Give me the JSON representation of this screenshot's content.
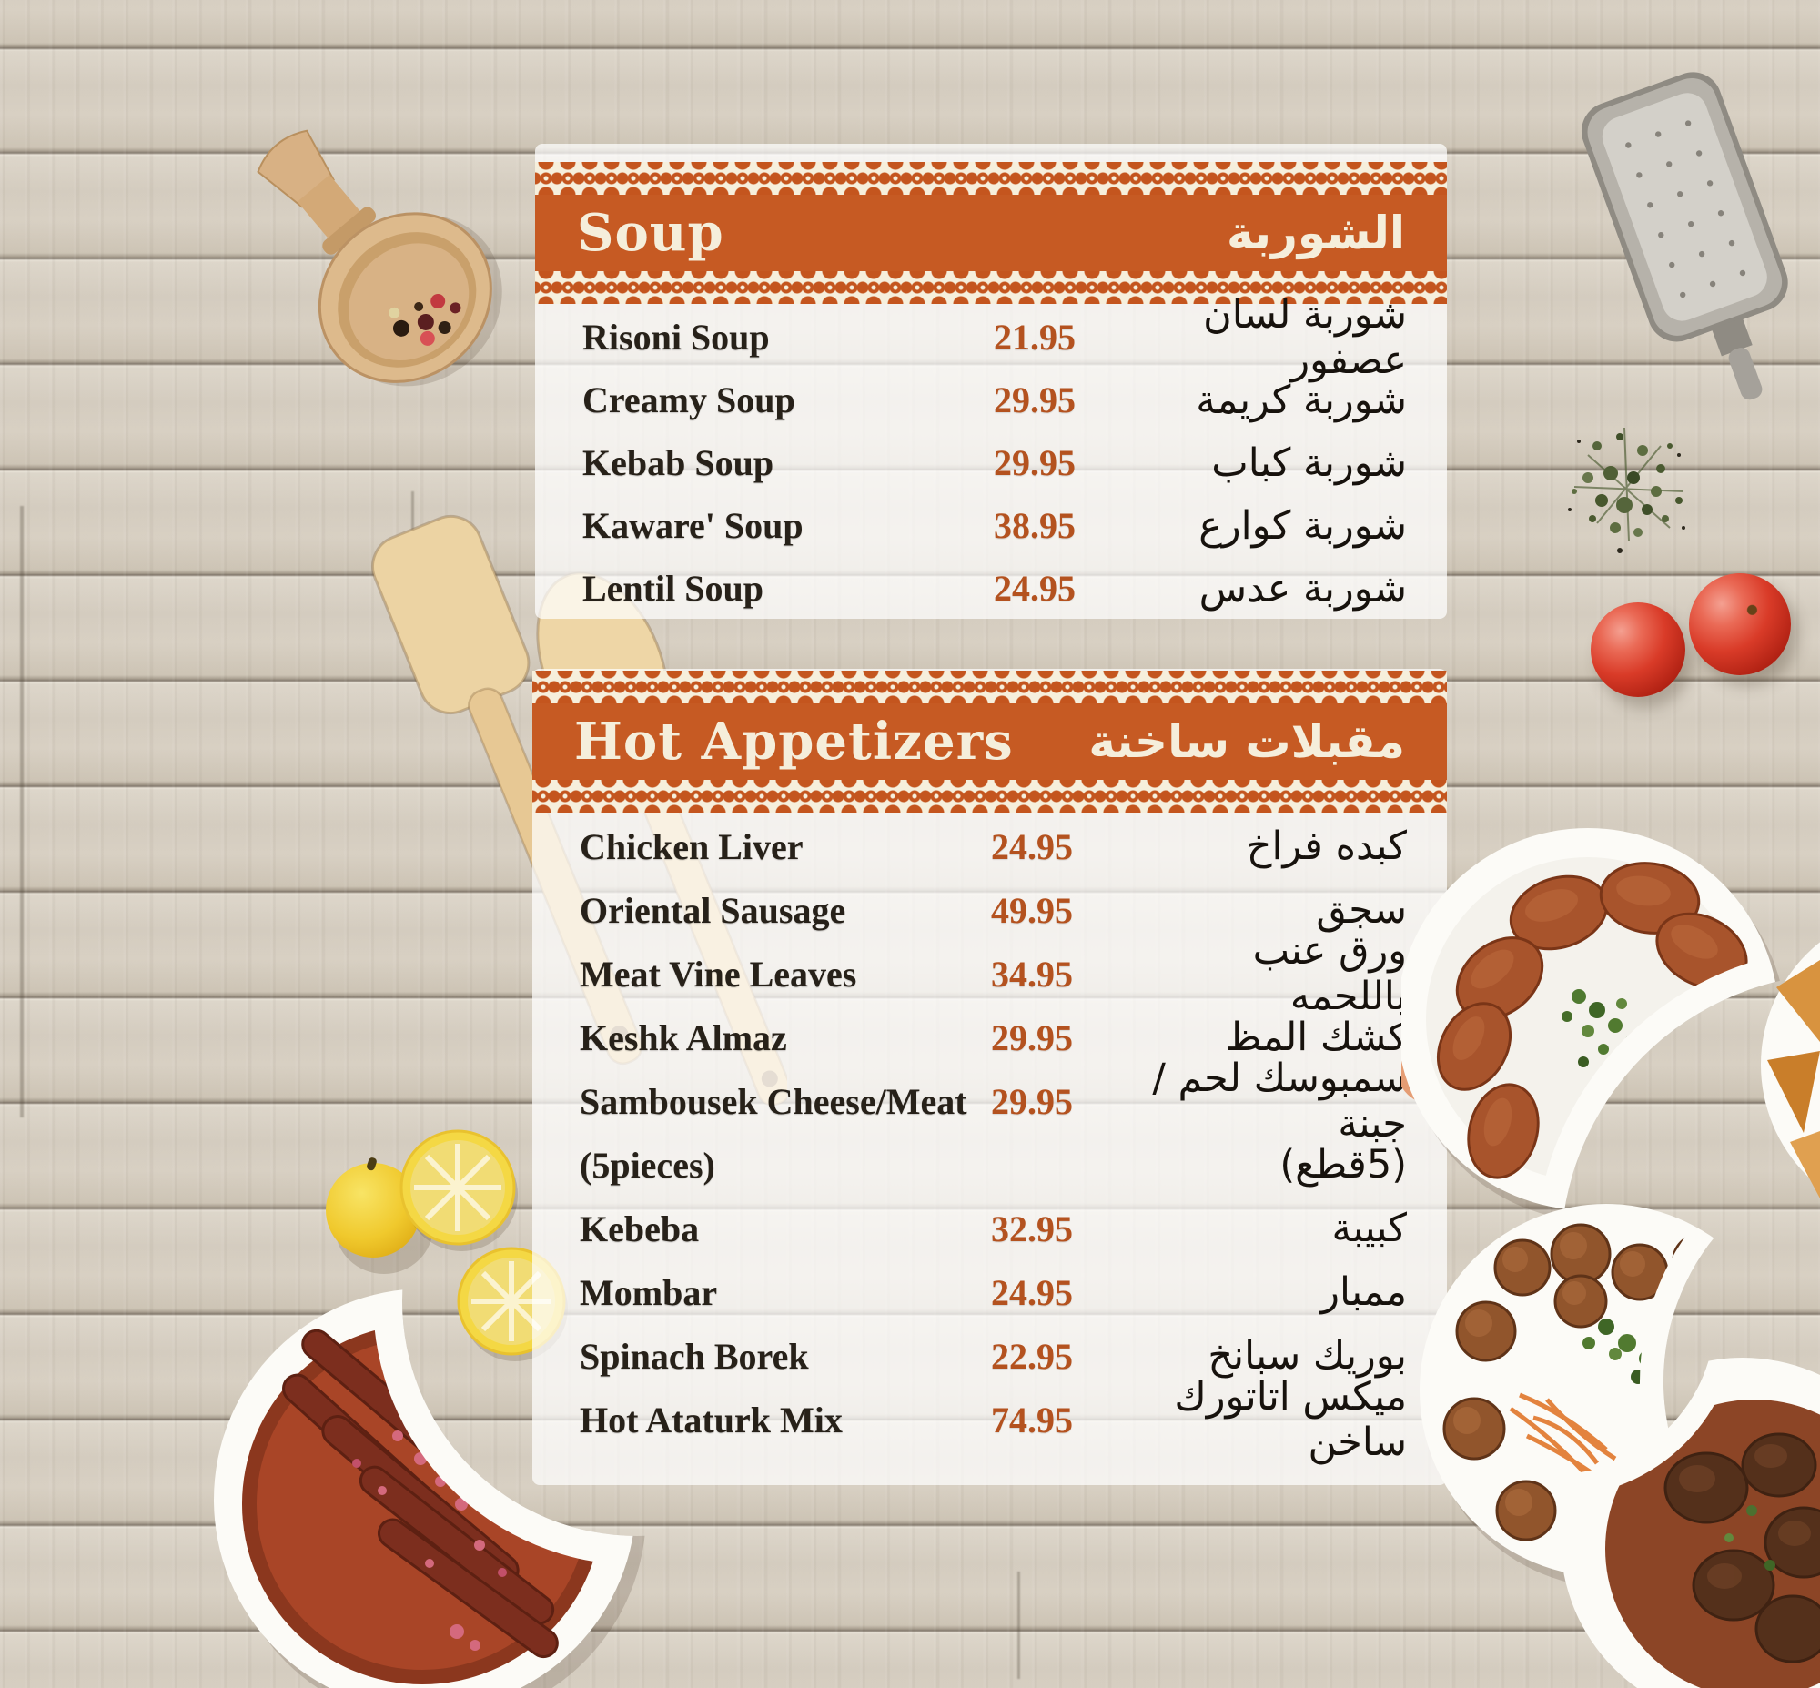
{
  "menu": {
    "sections": [
      {
        "id": "soup",
        "title_en": "Soup",
        "title_ar": "الشوربة",
        "items": [
          {
            "en": "Risoni Soup",
            "price": "21.95",
            "ar": "شوربة لسان عصفور"
          },
          {
            "en": "Creamy Soup",
            "price": "29.95",
            "ar": "شوربة كريمة"
          },
          {
            "en": "Kebab Soup",
            "price": "29.95",
            "ar": "شوربة كباب"
          },
          {
            "en": "Kaware' Soup",
            "price": "38.95",
            "ar": "شوربة كوارع"
          },
          {
            "en": "Lentil Soup",
            "price": "24.95",
            "ar": "شوربة عدس"
          }
        ]
      },
      {
        "id": "hot-appetizers",
        "title_en": "Hot Appetizers",
        "title_ar": "مقبلات ساخنة",
        "items": [
          {
            "en": "Chicken Liver",
            "price": "24.95",
            "ar": "كبده فراخ"
          },
          {
            "en": "Oriental Sausage",
            "price": "49.95",
            "ar": "سجق"
          },
          {
            "en": "Meat Vine Leaves",
            "price": "34.95",
            "ar": "ورق عنب باللحمه"
          },
          {
            "en": "Keshk Almaz",
            "price": "29.95",
            "ar": "كشك المظ"
          },
          {
            "en": "Sambousek Cheese/Meat",
            "en2": "(5pieces)",
            "price": "29.95",
            "ar": "سمبوسك لحم /جبنة",
            "ar2": "(5قطع)"
          },
          {
            "en": "Kebeba",
            "price": "32.95",
            "ar": "كبيبة"
          },
          {
            "en": "Mombar",
            "price": "24.95",
            "ar": "ممبار"
          },
          {
            "en": "Spinach Borek",
            "price": "22.95",
            "ar": "بوريك سبانخ"
          },
          {
            "en": "Hot Ataturk Mix",
            "price": "74.95",
            "ar": "ميكس اتاتورك ساخن"
          }
        ]
      }
    ]
  },
  "colors": {
    "banner_orange": "#c65a23",
    "banner_text": "#f5eedb",
    "price_text": "#b4521f",
    "item_text": "#272119",
    "arabic_text": "#17120d",
    "wood_light": "#d8d0c3"
  },
  "decor": {
    "items": [
      {
        "name": "wooden-spice-scoop-image"
      },
      {
        "name": "metal-grater-image"
      },
      {
        "name": "thyme-sprigs-image"
      },
      {
        "name": "tomatoes-image"
      },
      {
        "name": "wooden-spatulas-image"
      },
      {
        "name": "lemon-slices-image"
      },
      {
        "name": "sausage-plate-image"
      },
      {
        "name": "kibbeh-plate-image"
      },
      {
        "name": "sambousek-plate-image"
      },
      {
        "name": "meatball-plate-image"
      },
      {
        "name": "meat-stew-bowl-image"
      }
    ]
  }
}
